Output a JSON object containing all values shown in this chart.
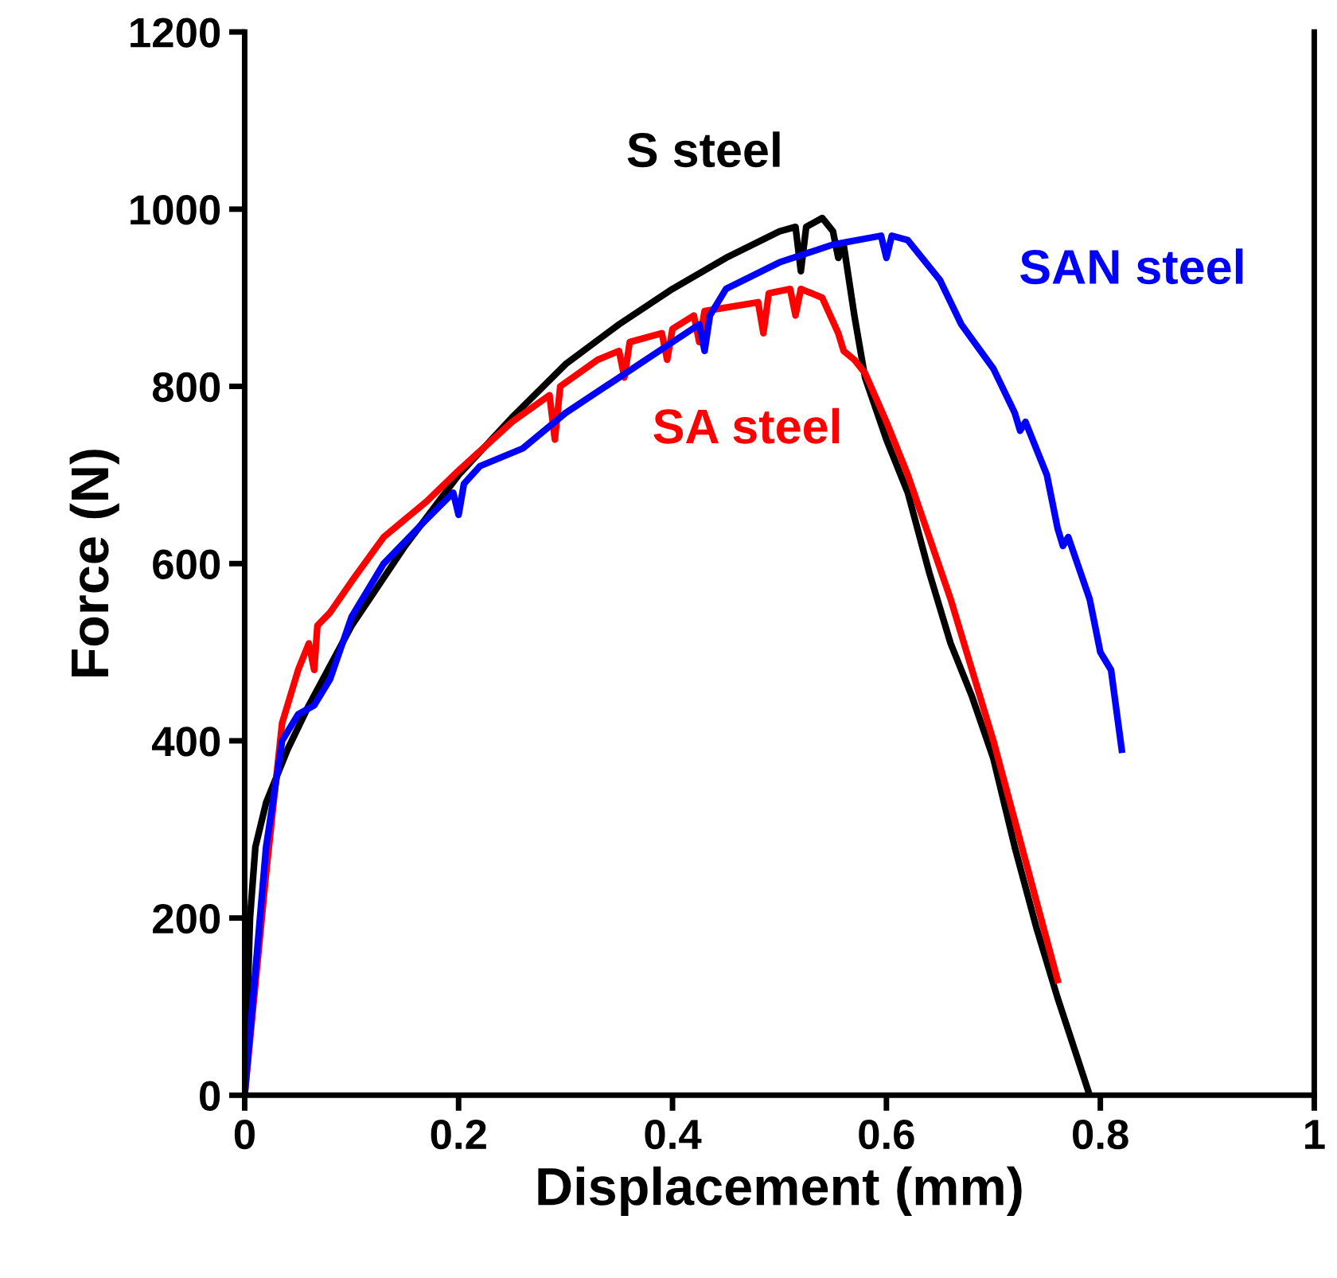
{
  "chart_data": {
    "type": "line",
    "xlabel": "Displacement (mm)",
    "ylabel": "Force (N)",
    "xlim": [
      0,
      1
    ],
    "ylim": [
      0,
      1200
    ],
    "xticks": [
      0,
      {
        "value": 0.2,
        "label": "0.2"
      },
      {
        "value": 0.4,
        "label": "0.4"
      },
      {
        "value": 0.6,
        "label": "0.6"
      },
      {
        "value": 0.8,
        "label": "0.8"
      },
      1
    ],
    "yticks": [
      0,
      200,
      400,
      600,
      800,
      1000,
      1200
    ],
    "grid": false,
    "legend": false,
    "marker": "none",
    "line_style": "solid",
    "series": [
      {
        "name": "S steel",
        "color": "#000000",
        "x": [
          0,
          0.005,
          0.01,
          0.02,
          0.04,
          0.06,
          0.1,
          0.15,
          0.2,
          0.25,
          0.3,
          0.35,
          0.4,
          0.45,
          0.5,
          0.515,
          0.52,
          0.525,
          0.54,
          0.55,
          0.555,
          0.56,
          0.57,
          0.58,
          0.6,
          0.62,
          0.64,
          0.66,
          0.68,
          0.7,
          0.72,
          0.74,
          0.76,
          0.79
        ],
        "values": [
          0,
          200,
          280,
          330,
          390,
          440,
          530,
          620,
          700,
          765,
          825,
          870,
          910,
          945,
          975,
          980,
          930,
          980,
          990,
          975,
          945,
          960,
          880,
          810,
          740,
          680,
          590,
          510,
          450,
          380,
          280,
          190,
          110,
          0
        ]
      },
      {
        "name": "SA steel",
        "color": "#ff0000",
        "x": [
          0,
          0.02,
          0.035,
          0.05,
          0.06,
          0.065,
          0.068,
          0.08,
          0.1,
          0.13,
          0.17,
          0.2,
          0.25,
          0.285,
          0.29,
          0.295,
          0.33,
          0.35,
          0.355,
          0.36,
          0.39,
          0.395,
          0.4,
          0.42,
          0.425,
          0.43,
          0.48,
          0.485,
          0.49,
          0.51,
          0.515,
          0.52,
          0.54,
          0.555,
          0.56,
          0.57,
          0.58,
          0.6,
          0.62,
          0.64,
          0.66,
          0.68,
          0.7,
          0.72,
          0.74,
          0.76
        ],
        "values": [
          0,
          250,
          420,
          480,
          510,
          480,
          530,
          545,
          580,
          630,
          670,
          705,
          760,
          790,
          740,
          800,
          830,
          840,
          810,
          850,
          860,
          830,
          865,
          880,
          850,
          885,
          895,
          860,
          905,
          910,
          880,
          910,
          900,
          860,
          840,
          830,
          815,
          760,
          700,
          630,
          560,
          480,
          400,
          310,
          220,
          130
        ]
      },
      {
        "name": "SAN steel",
        "color": "#0000ff",
        "x": [
          0,
          0.02,
          0.035,
          0.05,
          0.065,
          0.08,
          0.1,
          0.13,
          0.17,
          0.195,
          0.2,
          0.205,
          0.22,
          0.26,
          0.3,
          0.35,
          0.4,
          0.425,
          0.43,
          0.435,
          0.45,
          0.5,
          0.55,
          0.595,
          0.6,
          0.605,
          0.62,
          0.65,
          0.67,
          0.7,
          0.72,
          0.725,
          0.73,
          0.75,
          0.76,
          0.765,
          0.77,
          0.79,
          0.8,
          0.805,
          0.81,
          0.82
        ],
        "values": [
          0,
          280,
          400,
          430,
          440,
          470,
          540,
          600,
          650,
          680,
          655,
          690,
          710,
          730,
          770,
          810,
          850,
          870,
          840,
          880,
          910,
          940,
          960,
          970,
          945,
          970,
          965,
          920,
          870,
          820,
          770,
          750,
          760,
          700,
          640,
          620,
          630,
          560,
          500,
          490,
          480,
          390
        ]
      }
    ]
  }
}
